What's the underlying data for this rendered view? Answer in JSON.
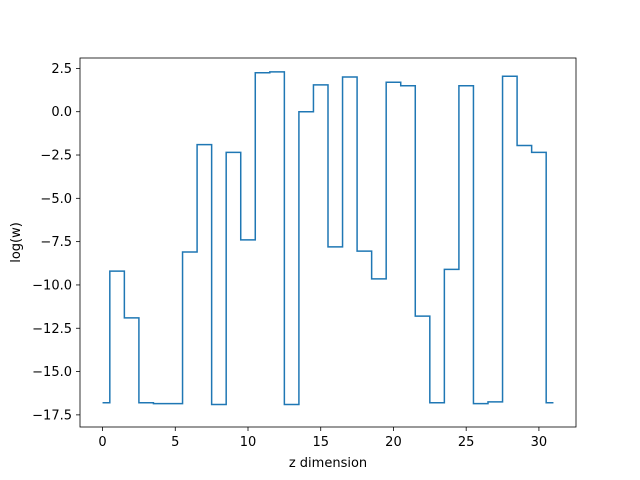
{
  "chart_data": {
    "type": "line",
    "step": "mid",
    "title": "",
    "xlabel": "z dimension",
    "ylabel": "log(w)",
    "xlim": [
      -1.55,
      32.55
    ],
    "ylim": [
      -18.2,
      3.1
    ],
    "grid": false,
    "legend": "none",
    "line_color": "#1f77b4",
    "xticks": [
      0,
      5,
      10,
      15,
      20,
      25,
      30
    ],
    "xtick_labels": [
      "0",
      "5",
      "10",
      "15",
      "20",
      "25",
      "30"
    ],
    "yticks": [
      2.5,
      0.0,
      -2.5,
      -5.0,
      -7.5,
      -10.0,
      -12.5,
      -15.0,
      -17.5
    ],
    "ytick_labels": [
      "2.5",
      "0.0",
      "−2.5",
      "−5.0",
      "−7.5",
      "−10.0",
      "−12.5",
      "−15.0",
      "−17.5"
    ],
    "series": [
      {
        "x": [
          0,
          1,
          2,
          3,
          4,
          5,
          6,
          7,
          8,
          9,
          10,
          11,
          12,
          13,
          14,
          15,
          16,
          17,
          18,
          19,
          20,
          21,
          22,
          23,
          24,
          25,
          26,
          27,
          28,
          29,
          30,
          31
        ],
        "values": [
          -16.8,
          -9.2,
          -11.9,
          -16.8,
          -16.85,
          -16.85,
          -8.1,
          -1.9,
          -16.9,
          -2.35,
          -7.4,
          2.25,
          2.3,
          -16.9,
          0.0,
          1.55,
          -7.8,
          2.0,
          -8.05,
          -9.65,
          1.7,
          1.5,
          -11.8,
          -16.8,
          -9.1,
          1.5,
          -16.85,
          -16.75,
          2.05,
          -1.95,
          -2.35,
          -16.8
        ]
      }
    ]
  }
}
